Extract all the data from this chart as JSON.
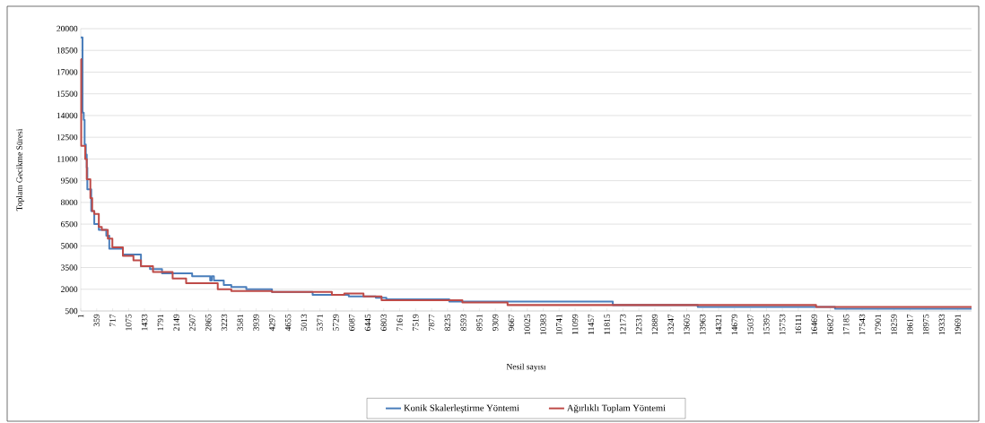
{
  "chart_data": {
    "type": "step",
    "xlabel": "Nesil sayısı",
    "ylabel": "Toplam Gecikme Süresi",
    "xlim": [
      1,
      20000
    ],
    "ylim": [
      500,
      20000
    ],
    "xticks": [
      1,
      359,
      717,
      1075,
      1433,
      1791,
      2149,
      2507,
      2865,
      3223,
      3581,
      3939,
      4297,
      4655,
      5013,
      5371,
      5729,
      6087,
      6445,
      6803,
      7161,
      7519,
      7877,
      8235,
      8593,
      8951,
      9309,
      9667,
      10025,
      10383,
      10741,
      11099,
      11457,
      11815,
      12173,
      12531,
      12889,
      13247,
      13605,
      13963,
      14321,
      14679,
      15037,
      15395,
      15753,
      16111,
      16469,
      16827,
      17185,
      17543,
      17901,
      18259,
      18617,
      18975,
      19333,
      19691
    ],
    "yticks": [
      500,
      2000,
      3500,
      5000,
      6500,
      8000,
      9500,
      11000,
      12500,
      14000,
      15500,
      17000,
      18500,
      20000
    ],
    "grid": "y",
    "legend": "bottom",
    "series": [
      {
        "name": "Konik Skalerleştirme Yöntemi",
        "color": "#4a7ebb",
        "x": [
          1,
          41,
          68,
          88,
          115,
          136,
          149,
          237,
          305,
          407,
          575,
          642,
          948,
          1353,
          1556,
          1826,
          2502,
          2907,
          2941,
          2990,
          3212,
          3381,
          3718,
          4294,
          5207,
          6018,
          6626,
          6862,
          8275,
          11946,
          13852,
          16935,
          20000
        ],
        "values": [
          19400,
          14200,
          13700,
          12000,
          11300,
          10400,
          8900,
          7400,
          6500,
          6100,
          5700,
          4800,
          4400,
          3600,
          3400,
          3100,
          2900,
          2600,
          2900,
          2600,
          2300,
          2150,
          2000,
          1820,
          1620,
          1500,
          1410,
          1310,
          1150,
          910,
          780,
          650,
          650
        ]
      },
      {
        "name": "Ağırlıklı Toplam Yöntemi",
        "color": "#be4b48",
        "x": [
          1,
          12,
          102,
          136,
          217,
          258,
          305,
          407,
          474,
          609,
          711,
          948,
          1184,
          1353,
          1623,
          2064,
          2367,
          3077,
          3381,
          4294,
          5639,
          5917,
          6349,
          6754,
          8569,
          9583,
          16509,
          20000
        ],
        "values": [
          17900,
          11900,
          11000,
          9600,
          8300,
          7400,
          7200,
          6300,
          6100,
          5500,
          4900,
          4300,
          4000,
          3600,
          3200,
          2750,
          2420,
          2000,
          1870,
          1820,
          1620,
          1700,
          1500,
          1250,
          1090,
          910,
          780,
          780
        ]
      }
    ]
  }
}
